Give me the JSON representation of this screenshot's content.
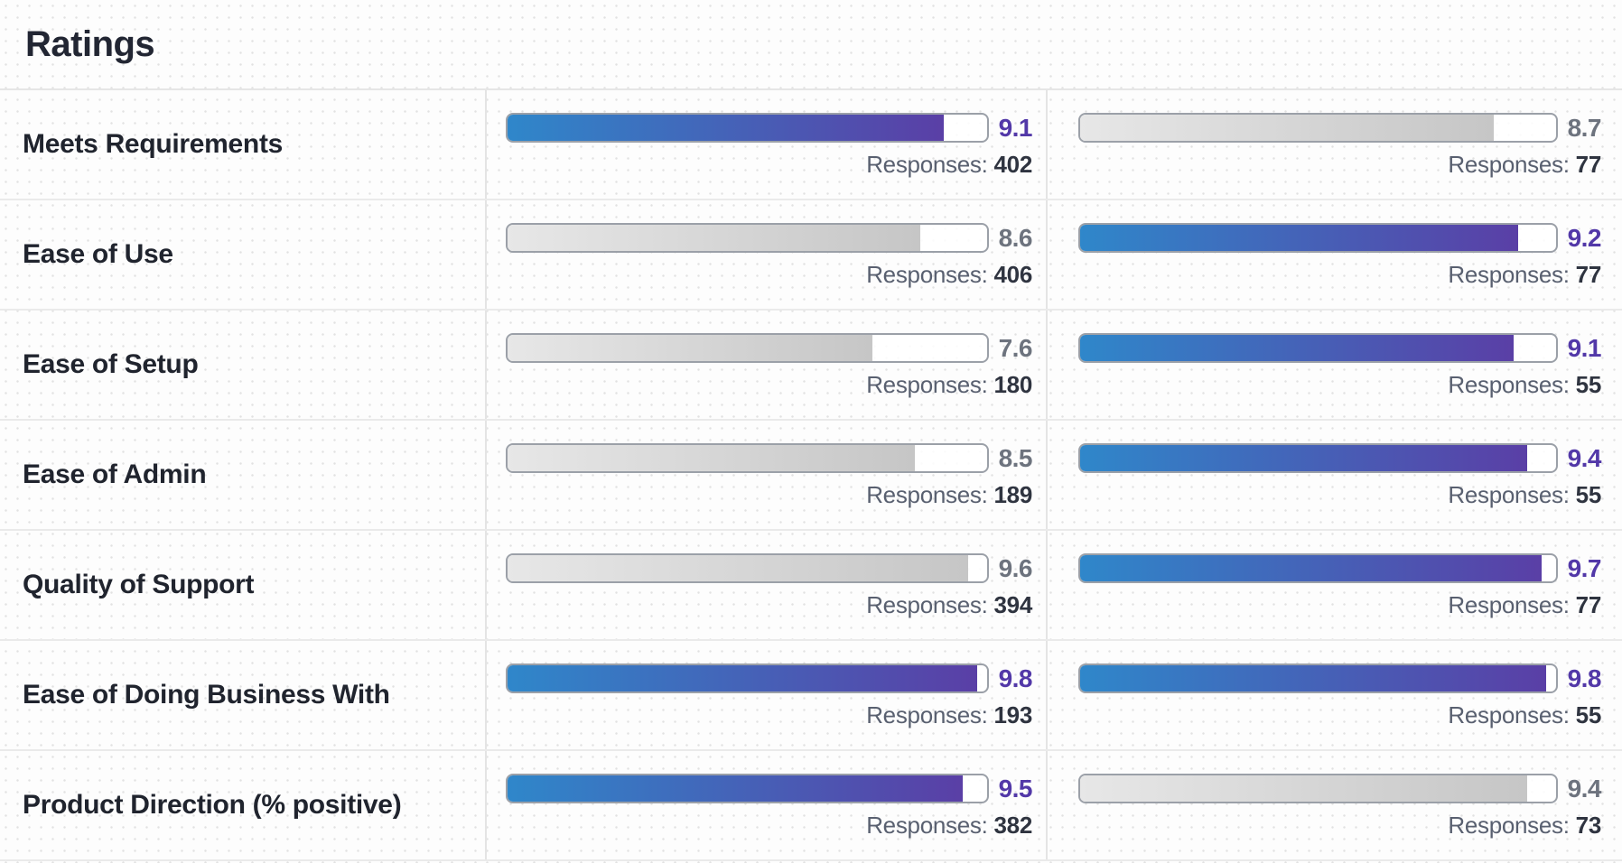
{
  "section": {
    "title": "Ratings"
  },
  "ratings": {
    "responses_label": "Responses:",
    "scale_max": 10,
    "rows": [
      {
        "label": "Meets Requirements",
        "left": {
          "score": "9.1",
          "responses": "402",
          "highlight": true
        },
        "right": {
          "score": "8.7",
          "responses": "77",
          "highlight": false
        }
      },
      {
        "label": "Ease of Use",
        "left": {
          "score": "8.6",
          "responses": "406",
          "highlight": false
        },
        "right": {
          "score": "9.2",
          "responses": "77",
          "highlight": true
        }
      },
      {
        "label": "Ease of Setup",
        "left": {
          "score": "7.6",
          "responses": "180",
          "highlight": false
        },
        "right": {
          "score": "9.1",
          "responses": "55",
          "highlight": true
        }
      },
      {
        "label": "Ease of Admin",
        "left": {
          "score": "8.5",
          "responses": "189",
          "highlight": false
        },
        "right": {
          "score": "9.4",
          "responses": "55",
          "highlight": true
        }
      },
      {
        "label": "Quality of Support",
        "left": {
          "score": "9.6",
          "responses": "394",
          "highlight": false
        },
        "right": {
          "score": "9.7",
          "responses": "77",
          "highlight": true
        }
      },
      {
        "label": "Ease of Doing Business With",
        "left": {
          "score": "9.8",
          "responses": "193",
          "highlight": true
        },
        "right": {
          "score": "9.8",
          "responses": "55",
          "highlight": true
        }
      },
      {
        "label": "Product Direction (% positive)",
        "left": {
          "score": "9.5",
          "responses": "382",
          "highlight": true
        },
        "right": {
          "score": "9.4",
          "responses": "73",
          "highlight": false
        }
      }
    ]
  },
  "colors": {
    "accent_gradient_start": "#2f87ca",
    "accent_gradient_end": "#5a3fa6",
    "accent_score_text": "#5238a8",
    "muted_gradient_start": "#e7e7e7",
    "muted_gradient_end": "#c6c6c6",
    "muted_score_text": "#6d737e",
    "label_text": "#20242e"
  },
  "chart_data": {
    "type": "bar",
    "title": "Ratings",
    "categories": [
      "Meets Requirements",
      "Ease of Use",
      "Ease of Setup",
      "Ease of Admin",
      "Quality of Support",
      "Ease of Doing Business With",
      "Product Direction (% positive)"
    ],
    "series": [
      {
        "name": "column_1",
        "values": [
          9.1,
          8.6,
          7.6,
          8.5,
          9.6,
          9.8,
          9.5
        ],
        "responses": [
          402,
          406,
          180,
          189,
          394,
          193,
          382
        ]
      },
      {
        "name": "column_2",
        "values": [
          8.7,
          9.2,
          9.1,
          9.4,
          9.7,
          9.8,
          9.4
        ],
        "responses": [
          77,
          77,
          55,
          55,
          77,
          55,
          73
        ]
      }
    ],
    "xlim": [
      0,
      10
    ],
    "legend": "none",
    "grid": false
  }
}
